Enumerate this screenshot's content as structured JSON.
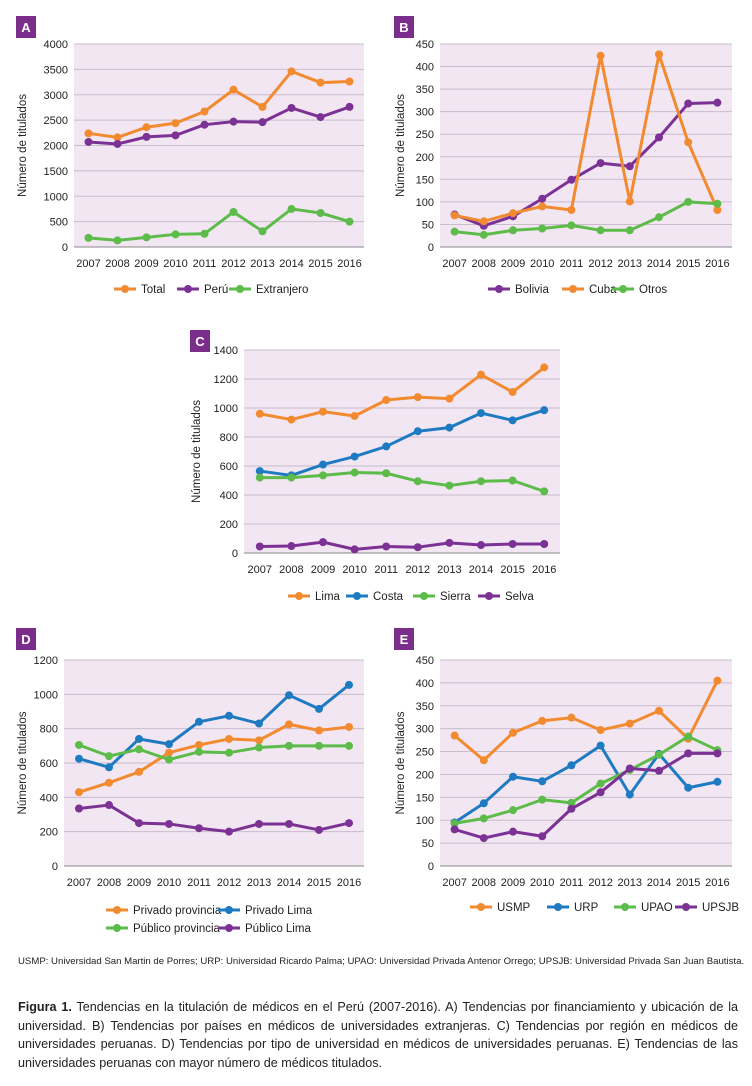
{
  "chart_data": [
    {
      "type": "line",
      "panel_label": "A",
      "categories": [
        "2007",
        "2008",
        "2009",
        "2010",
        "2011",
        "2012",
        "2013",
        "2014",
        "2015",
        "2016"
      ],
      "ylabel": "Número de titulados",
      "ylim": [
        0,
        4000
      ],
      "yticks": [
        0,
        500,
        1000,
        1500,
        2000,
        2500,
        3000,
        3500,
        4000
      ],
      "grid": true,
      "legend_position": "bottom",
      "series": [
        {
          "name": "Total",
          "color": "#f28a30",
          "values": [
            2240,
            2160,
            2360,
            2440,
            2670,
            3100,
            2760,
            3460,
            3240,
            3260
          ]
        },
        {
          "name": "Perú",
          "color": "#7b3294",
          "values": [
            2070,
            2030,
            2170,
            2200,
            2410,
            2470,
            2460,
            2740,
            2560,
            2760
          ]
        },
        {
          "name": "Extranjero",
          "color": "#5dbb4a",
          "values": [
            180,
            130,
            190,
            250,
            260,
            690,
            310,
            750,
            670,
            500
          ]
        }
      ]
    },
    {
      "type": "line",
      "panel_label": "B",
      "categories": [
        "2007",
        "2008",
        "2009",
        "2010",
        "2011",
        "2012",
        "2013",
        "2014",
        "2015",
        "2016"
      ],
      "ylabel": "Número de titulados",
      "ylim": [
        0,
        450
      ],
      "yticks": [
        0,
        50,
        100,
        150,
        200,
        250,
        300,
        350,
        400,
        450
      ],
      "grid": true,
      "legend_position": "bottom",
      "series": [
        {
          "name": "Bolivia",
          "color": "#7b3294",
          "values": [
            72,
            47,
            68,
            107,
            149,
            186,
            179,
            243,
            318,
            320
          ]
        },
        {
          "name": "Cuba",
          "color": "#f28a30",
          "values": [
            70,
            57,
            75,
            90,
            82,
            424,
            101,
            427,
            232,
            82
          ]
        },
        {
          "name": "Otros",
          "color": "#5dbb4a",
          "values": [
            34,
            27,
            37,
            41,
            48,
            37,
            37,
            66,
            100,
            96
          ]
        }
      ]
    },
    {
      "type": "line",
      "panel_label": "C",
      "categories": [
        "2007",
        "2008",
        "2009",
        "2010",
        "2011",
        "2012",
        "2013",
        "2014",
        "2015",
        "2016"
      ],
      "ylabel": "Número de titulados",
      "ylim": [
        0,
        1400
      ],
      "yticks": [
        0,
        200,
        400,
        600,
        800,
        1000,
        1200,
        1400
      ],
      "grid": true,
      "legend_position": "bottom",
      "series": [
        {
          "name": "Lima",
          "color": "#f28a30",
          "values": [
            960,
            920,
            975,
            945,
            1055,
            1075,
            1065,
            1230,
            1110,
            1280
          ]
        },
        {
          "name": "Costa",
          "color": "#1f7bc1",
          "values": [
            565,
            535,
            610,
            665,
            735,
            840,
            865,
            965,
            915,
            985
          ]
        },
        {
          "name": "Sierra",
          "color": "#5dbb4a",
          "values": [
            520,
            520,
            535,
            555,
            550,
            495,
            465,
            495,
            500,
            425
          ]
        },
        {
          "name": "Selva",
          "color": "#7b3294",
          "values": [
            45,
            48,
            75,
            25,
            45,
            40,
            70,
            55,
            62,
            62
          ]
        }
      ]
    },
    {
      "type": "line",
      "panel_label": "D",
      "categories": [
        "2007",
        "2008",
        "2009",
        "2010",
        "2011",
        "2012",
        "2013",
        "2014",
        "2015",
        "2016"
      ],
      "ylabel": "Número de titulados",
      "ylim": [
        0,
        1200
      ],
      "yticks": [
        0,
        200,
        400,
        600,
        800,
        1000,
        1200
      ],
      "grid": true,
      "legend_position": "bottom",
      "series": [
        {
          "name": "Privado provincia",
          "color": "#f28a30",
          "values": [
            430,
            485,
            548,
            660,
            705,
            740,
            732,
            825,
            790,
            810
          ]
        },
        {
          "name": "Privado Lima",
          "color": "#1f7bc1",
          "values": [
            625,
            575,
            740,
            710,
            840,
            875,
            830,
            995,
            915,
            1055
          ]
        },
        {
          "name": "Público provincia",
          "color": "#5dbb4a",
          "values": [
            705,
            640,
            680,
            620,
            665,
            660,
            690,
            700,
            700,
            700
          ]
        },
        {
          "name": "Público Lima",
          "color": "#7b3294",
          "values": [
            335,
            355,
            250,
            245,
            220,
            200,
            245,
            245,
            210,
            250
          ]
        }
      ]
    },
    {
      "type": "line",
      "panel_label": "E",
      "categories": [
        "2007",
        "2008",
        "2009",
        "2010",
        "2011",
        "2012",
        "2013",
        "2014",
        "2015",
        "2016"
      ],
      "ylabel": "Número de titulados",
      "ylim": [
        0,
        450
      ],
      "yticks": [
        0,
        50,
        100,
        150,
        200,
        250,
        300,
        350,
        400,
        450
      ],
      "grid": true,
      "legend_position": "bottom",
      "series": [
        {
          "name": "USMP",
          "color": "#f28a30",
          "values": [
            285,
            231,
            291,
            317,
            324,
            297,
            311,
            339,
            278,
            405
          ]
        },
        {
          "name": "URP",
          "color": "#1f7bc1",
          "values": [
            95,
            137,
            195,
            185,
            220,
            263,
            156,
            245,
            171,
            184
          ]
        },
        {
          "name": "UPAO",
          "color": "#5dbb4a",
          "values": [
            93,
            104,
            122,
            145,
            138,
            180,
            210,
            243,
            283,
            253
          ]
        },
        {
          "name": "UPSJB",
          "color": "#7b3294",
          "values": [
            80,
            61,
            75,
            65,
            125,
            161,
            213,
            208,
            246,
            246
          ]
        }
      ]
    }
  ],
  "footnote": "USMP: Universidad San Martin de Porres; URP: Universidad Ricardo Palma; UPAO: Universidad Privada Antenor Orrego; UPSJB: Universidad Privada San Juan Bautista.",
  "caption": {
    "label": "Figura 1.",
    "text": " Tendencias en la titulación de médicos en el Perú (2007-2016). A) Tendencias por financiamiento y ubicación de la universidad. B) Tendencias por países en médicos de universidades extranjeras. C) Tendencias por región en médicos de universidades peruanas. D) Tendencias por tipo de universidad en médicos de universidades peruanas. E) Tendencias de las universidades peruanas con mayor número de médicos titulados."
  }
}
